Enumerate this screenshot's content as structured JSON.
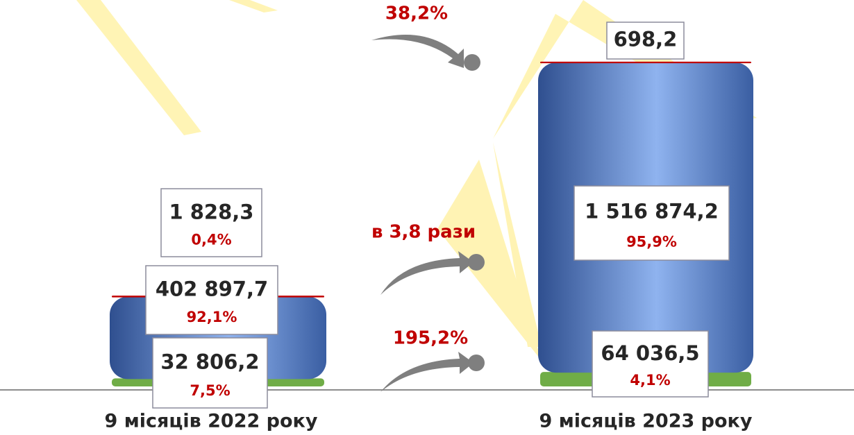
{
  "chart_data": {
    "type": "stacked-cylinder",
    "categories": [
      "9 місяців 2022 року",
      "9 місяців 2023 року"
    ],
    "series": [
      {
        "color": "#70ad47",
        "values": [
          32806.2,
          64036.5
        ],
        "value_labels": [
          "32 806,2",
          "64 036,5"
        ],
        "shares": [
          7.5,
          4.1
        ],
        "share_labels": [
          "7,5%",
          "4,1%"
        ]
      },
      {
        "color": "#4a72b8",
        "values": [
          402897.7,
          1516874.2
        ],
        "value_labels": [
          "402 897,7",
          "1 516 874,2"
        ],
        "shares": [
          92.1,
          95.9
        ],
        "share_labels": [
          "92,1%",
          "95,9%"
        ]
      },
      {
        "color": "#c00000",
        "values": [
          1828.3,
          698.2
        ],
        "value_labels": [
          "1 828,3",
          "698,2"
        ],
        "shares": [
          0.4,
          null
        ],
        "share_labels": [
          "0,4%",
          null
        ]
      }
    ],
    "changes": [
      {
        "value": 195.2,
        "label": "195,2%"
      },
      {
        "value": 3.8,
        "label": "в 3,8 рази"
      },
      {
        "value": 38.2,
        "label": "38,2%"
      }
    ]
  }
}
